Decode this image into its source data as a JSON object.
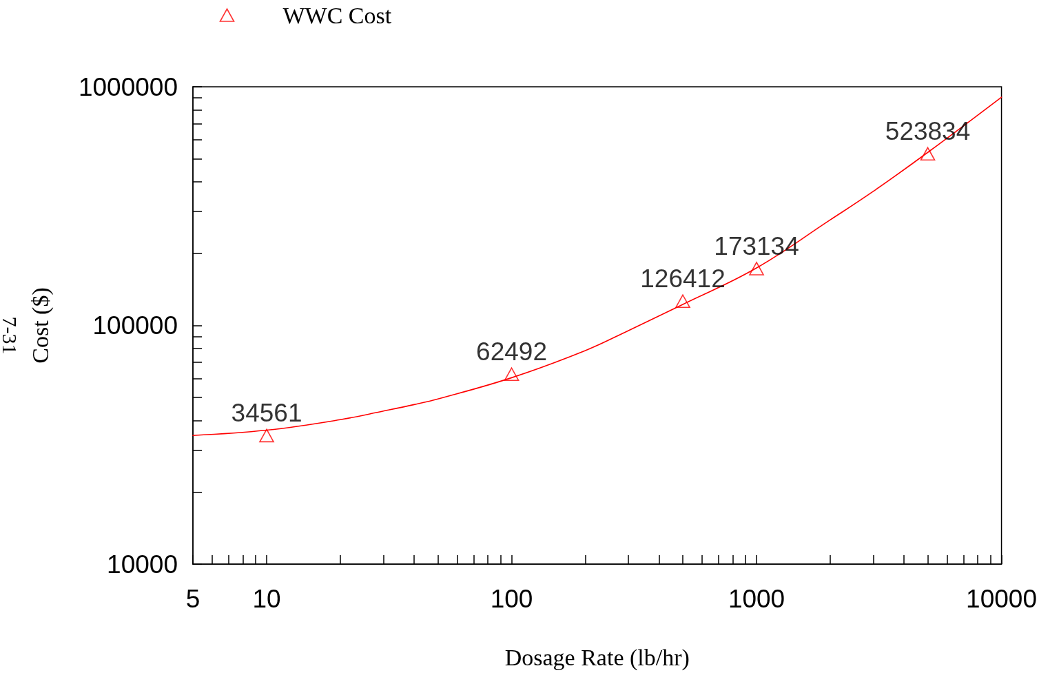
{
  "chart_data": {
    "type": "scatter",
    "xlabel": "Dosage Rate (lb/hr)",
    "ylabel": "Cost ($)",
    "annotations": [
      "7-31"
    ],
    "log": "xy",
    "legend": "top left",
    "xlim": [
      5,
      10000
    ],
    "ylim": [
      10000,
      1000000
    ],
    "xticks": [
      5,
      {
        "value": 6,
        "label": null
      },
      {
        "value": 7,
        "label": null
      },
      {
        "value": 8,
        "label": null
      },
      {
        "value": 9,
        "label": null
      },
      10,
      {
        "value": 20,
        "label": null
      },
      {
        "value": 30,
        "label": null
      },
      {
        "value": 40,
        "label": null
      },
      {
        "value": 50,
        "label": null
      },
      {
        "value": 60,
        "label": null
      },
      {
        "value": 70,
        "label": null
      },
      {
        "value": 80,
        "label": null
      },
      {
        "value": 90,
        "label": null
      },
      100,
      {
        "value": 200,
        "label": null
      },
      {
        "value": 300,
        "label": null
      },
      {
        "value": 400,
        "label": null
      },
      {
        "value": 500,
        "label": null
      },
      {
        "value": 600,
        "label": null
      },
      {
        "value": 700,
        "label": null
      },
      {
        "value": 800,
        "label": null
      },
      {
        "value": 900,
        "label": null
      },
      1000,
      {
        "value": 2000,
        "label": null
      },
      {
        "value": 3000,
        "label": null
      },
      {
        "value": 4000,
        "label": null
      },
      {
        "value": 5000,
        "label": null
      },
      {
        "value": 6000,
        "label": null
      },
      {
        "value": 7000,
        "label": null
      },
      {
        "value": 8000,
        "label": null
      },
      {
        "value": 9000,
        "label": null
      },
      10000
    ],
    "yticks": [
      10000,
      {
        "value": 20000,
        "label": null
      },
      {
        "value": 30000,
        "label": null
      },
      {
        "value": 40000,
        "label": null
      },
      {
        "value": 50000,
        "label": null
      },
      {
        "value": 60000,
        "label": null
      },
      {
        "value": 70000,
        "label": null
      },
      {
        "value": 80000,
        "label": null
      },
      {
        "value": 90000,
        "label": null
      },
      100000,
      {
        "value": 200000,
        "label": null
      },
      {
        "value": 300000,
        "label": null
      },
      {
        "value": 400000,
        "label": null
      },
      {
        "value": 500000,
        "label": null
      },
      {
        "value": 600000,
        "label": null
      },
      {
        "value": 700000,
        "label": null
      },
      {
        "value": 800000,
        "label": null
      },
      {
        "value": 900000,
        "label": null
      },
      1000000
    ],
    "series": [
      {
        "type": "line",
        "color": "#ff0000",
        "marker": "none",
        "line_style": "solid",
        "x": [
          5,
          10,
          20,
          30,
          40,
          50,
          100,
          200,
          300,
          500,
          1000,
          2000,
          3000,
          5000,
          10000
        ],
        "values": [
          34600,
          36400,
          40300,
          43800,
          46600,
          49200,
          60400,
          78500,
          95200,
          122500,
          174100,
          277000,
          365000,
          531000,
          905000
        ]
      },
      {
        "name": "WWC Cost",
        "color": "#ff0000",
        "marker": "triangle",
        "data_labels": true,
        "x": [
          10,
          100,
          500,
          1000,
          5000
        ],
        "values": [
          34561,
          62492,
          126412,
          173134,
          523834
        ]
      }
    ]
  }
}
